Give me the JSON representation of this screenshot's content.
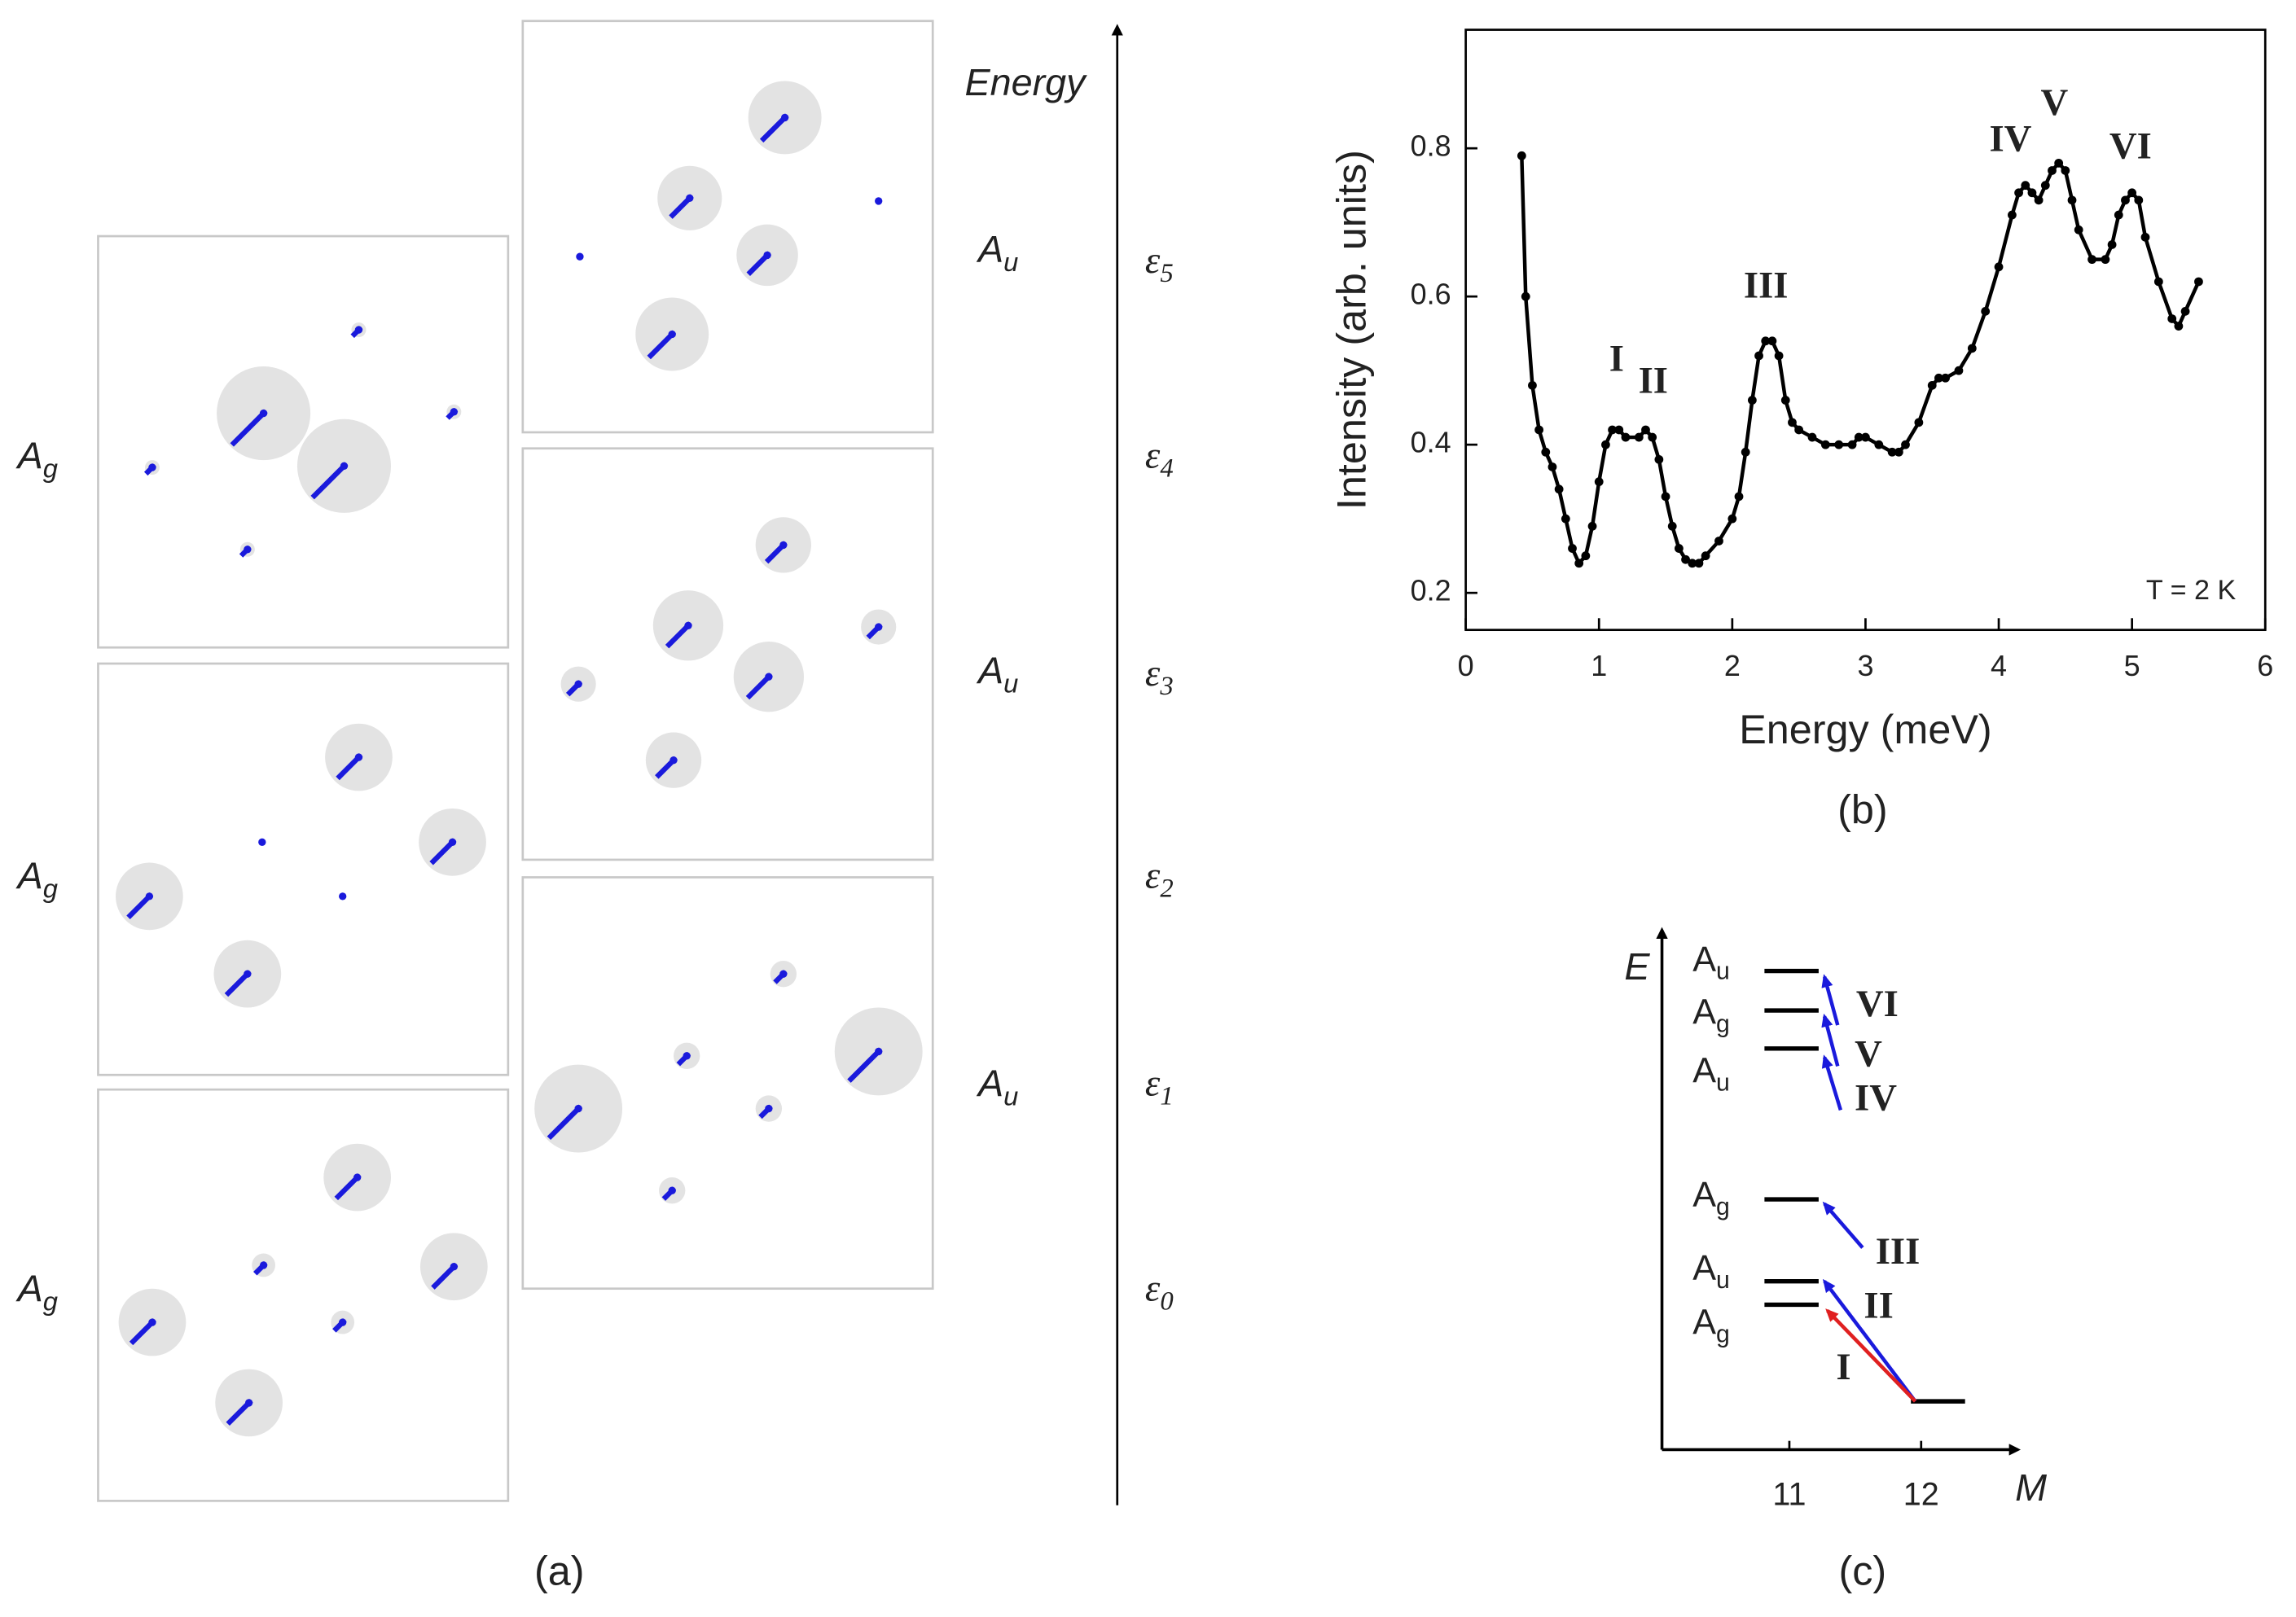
{
  "panel_a": {
    "label": "(a)",
    "axis_label": "Energy",
    "states": [
      {
        "symbol": "A",
        "sub": "g"
      },
      {
        "symbol": "A",
        "sub": "g"
      },
      {
        "symbol": "A",
        "sub": "g"
      },
      {
        "symbol": "A",
        "sub": "u"
      },
      {
        "symbol": "A",
        "sub": "u"
      },
      {
        "symbol": "A",
        "sub": "u"
      }
    ],
    "levels": [
      {
        "symbol": "ε",
        "sub": "5"
      },
      {
        "symbol": "ε",
        "sub": "4"
      },
      {
        "symbol": "ε",
        "sub": "3"
      },
      {
        "symbol": "ε",
        "sub": "2"
      },
      {
        "symbol": "ε",
        "sub": "1"
      },
      {
        "symbol": "ε",
        "sub": "0"
      }
    ]
  },
  "chart_data": {
    "type": "line",
    "label": "(b)",
    "xlabel": "Energy (meV)",
    "ylabel": "Intensity (arb. units)",
    "color": "#000000",
    "x": [
      0.42,
      0.45,
      0.5,
      0.55,
      0.6,
      0.65,
      0.7,
      0.75,
      0.8,
      0.85,
      0.9,
      0.95,
      1.0,
      1.05,
      1.1,
      1.15,
      1.2,
      1.3,
      1.35,
      1.4,
      1.45,
      1.5,
      1.55,
      1.6,
      1.65,
      1.7,
      1.75,
      1.8,
      1.9,
      2.0,
      2.05,
      2.1,
      2.15,
      2.2,
      2.25,
      2.3,
      2.35,
      2.4,
      2.45,
      2.5,
      2.6,
      2.7,
      2.8,
      2.9,
      2.95,
      3.0,
      3.1,
      3.2,
      3.25,
      3.3,
      3.4,
      3.5,
      3.55,
      3.6,
      3.7,
      3.8,
      3.9,
      4.0,
      4.1,
      4.15,
      4.2,
      4.25,
      4.3,
      4.35,
      4.4,
      4.45,
      4.5,
      4.55,
      4.6,
      4.7,
      4.8,
      4.85,
      4.9,
      4.95,
      5.0,
      5.05,
      5.1,
      5.2,
      5.3,
      5.35,
      5.4,
      5.5
    ],
    "values": [
      0.79,
      0.6,
      0.48,
      0.42,
      0.39,
      0.37,
      0.34,
      0.3,
      0.26,
      0.24,
      0.25,
      0.29,
      0.35,
      0.4,
      0.42,
      0.42,
      0.41,
      0.41,
      0.42,
      0.41,
      0.38,
      0.33,
      0.29,
      0.26,
      0.245,
      0.24,
      0.24,
      0.25,
      0.27,
      0.3,
      0.33,
      0.39,
      0.46,
      0.52,
      0.54,
      0.54,
      0.52,
      0.46,
      0.43,
      0.42,
      0.41,
      0.4,
      0.4,
      0.4,
      0.41,
      0.41,
      0.4,
      0.39,
      0.39,
      0.4,
      0.43,
      0.48,
      0.49,
      0.49,
      0.5,
      0.53,
      0.58,
      0.64,
      0.71,
      0.74,
      0.75,
      0.74,
      0.73,
      0.75,
      0.77,
      0.78,
      0.77,
      0.73,
      0.69,
      0.65,
      0.65,
      0.67,
      0.71,
      0.73,
      0.74,
      0.73,
      0.68,
      0.62,
      0.57,
      0.56,
      0.58,
      0.62
    ],
    "xlim": [
      0,
      6
    ],
    "xticks": [
      0,
      1,
      2,
      3,
      4,
      5,
      6
    ],
    "ylim": [
      0.15,
      0.96
    ],
    "yticks": [
      0.2,
      0.4,
      0.6,
      0.8
    ],
    "annotations": [
      {
        "text": "I",
        "color": "#e02020"
      },
      {
        "text": "II",
        "color": "#1a1adc"
      },
      {
        "text": "III",
        "color": "#1a1adc"
      },
      {
        "text": "IV",
        "color": "#1a1adc"
      },
      {
        "text": "V",
        "color": "#1a1adc"
      },
      {
        "text": "VI",
        "color": "#1a1adc"
      }
    ],
    "note": "T = 2 K"
  },
  "panel_c": {
    "label": "(c)",
    "y_axis": "E",
    "x_axis": "M",
    "xticks": [
      "11",
      "12"
    ],
    "levels": [
      {
        "symbol": "A",
        "sub": "u"
      },
      {
        "symbol": "A",
        "sub": "g"
      },
      {
        "symbol": "A",
        "sub": "u"
      },
      {
        "symbol": "A",
        "sub": "g"
      },
      {
        "symbol": "A",
        "sub": "u"
      },
      {
        "symbol": "A",
        "sub": "g"
      }
    ],
    "transitions": [
      {
        "text": "VI",
        "color": "#1a1adc"
      },
      {
        "text": "V",
        "color": "#1a1adc"
      },
      {
        "text": "IV",
        "color": "#1a1adc"
      },
      {
        "text": "III",
        "color": "#1a1adc"
      },
      {
        "text": "II",
        "color": "#1a1adc"
      },
      {
        "text": "I",
        "color": "#e02020"
      }
    ]
  }
}
